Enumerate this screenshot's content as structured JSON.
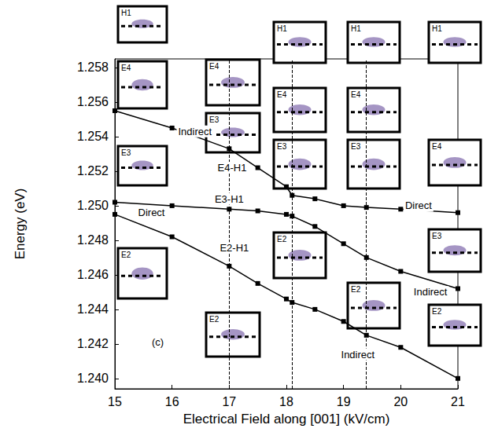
{
  "chart_data": {
    "type": "line",
    "x_label": "Electrical Field along [001] (kV/cm)",
    "y_label": "Energy (eV)",
    "x": [
      15,
      16,
      17,
      17.5,
      18,
      18.1,
      18.5,
      19,
      19.4,
      20,
      21
    ],
    "xlim": [
      15,
      21
    ],
    "xticks": [
      15,
      16,
      17,
      18,
      19,
      20,
      21
    ],
    "ylim": [
      1.2394,
      1.2585
    ],
    "yticks": [
      {
        "value": 1.24,
        "label": "1.240"
      },
      {
        "value": 1.242,
        "label": "1.242"
      },
      {
        "value": 1.244,
        "label": "1.244"
      },
      {
        "value": 1.246,
        "label": "1.246"
      },
      {
        "value": 1.248,
        "label": "1.248"
      },
      {
        "value": 1.25,
        "label": "1.250"
      },
      {
        "value": 1.252,
        "label": "1.252"
      },
      {
        "value": 1.254,
        "label": "1.254"
      },
      {
        "value": 1.256,
        "label": "1.256"
      },
      {
        "value": 1.258,
        "label": "1.258"
      }
    ],
    "grid": false,
    "marker": "square",
    "line_style": "solid",
    "series": [
      {
        "name": "E4-H1",
        "color": "#000000",
        "name_at": [
          17.05,
          1.2522
        ],
        "values": [
          1.2555,
          1.2545,
          1.2533,
          1.2522,
          1.2511,
          1.2506,
          1.2504,
          1.25,
          1.2499,
          1.2498,
          1.2496
        ]
      },
      {
        "name": "E3-H1",
        "color": "#000000",
        "name_at": [
          17.0,
          1.2504
        ],
        "values": [
          1.2502,
          1.25,
          1.2498,
          1.2497,
          1.2495,
          1.2494,
          1.2488,
          1.2478,
          1.247,
          1.2462,
          1.2452
        ]
      },
      {
        "name": "E2-H1",
        "color": "#000000",
        "name_at": [
          17.09,
          1.24755
        ],
        "values": [
          1.2495,
          1.2482,
          1.2465,
          1.2455,
          1.2446,
          1.2444,
          1.244,
          1.2433,
          1.2425,
          1.2418,
          1.24
        ]
      }
    ],
    "vlines": [
      17,
      18.1,
      19.4
    ],
    "annotations": [
      {
        "text": "Indirect",
        "x": 16.4,
        "y": 1.2543
      },
      {
        "text": "Direct",
        "x": 15.64,
        "y": 1.2496
      },
      {
        "text": "(c)",
        "x": 15.75,
        "y": 1.2421
      },
      {
        "text": "Indirect",
        "x": 19.25,
        "y": 1.2414
      },
      {
        "text": "Indirect",
        "x": 20.52,
        "y": 1.245
      },
      {
        "text": "Direct",
        "x": 20.31,
        "y": 1.25
      }
    ],
    "insets": [
      "H1",
      "E4",
      "E3",
      "E2",
      "E4",
      "E3",
      "E2",
      "H1",
      "E4",
      "E3",
      "E2",
      "H1",
      "E4",
      "E3",
      "E2",
      "H1",
      "E4",
      "E3",
      "E2"
    ]
  }
}
